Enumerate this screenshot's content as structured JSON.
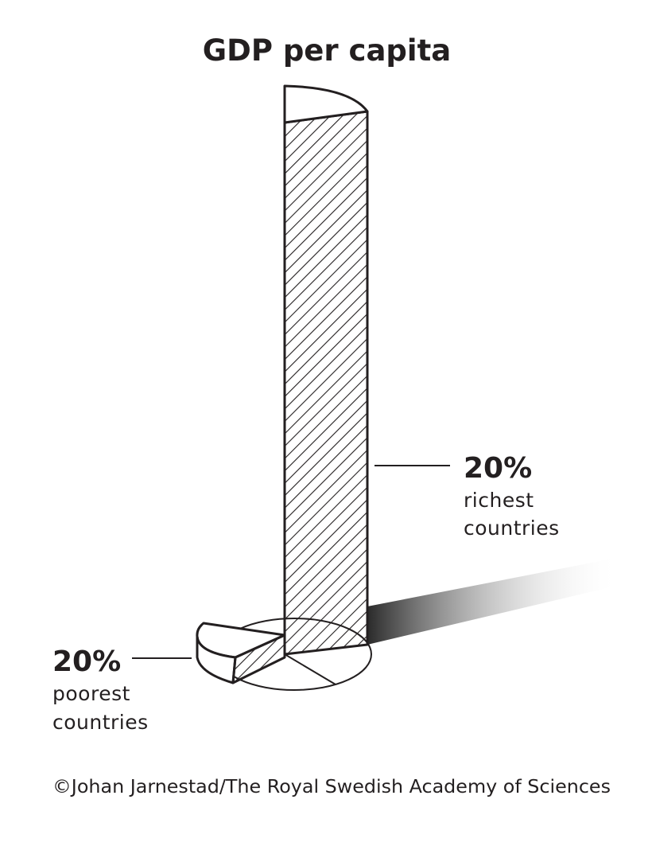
{
  "chart_data": {
    "type": "bar",
    "title": "GDP per capita",
    "categories": [
      "20% poorest countries",
      "20% richest countries"
    ],
    "values": [
      1,
      11
    ],
    "annotations": [
      {
        "percent": "20%",
        "line1": "richest",
        "line2": "countries"
      },
      {
        "percent": "20%",
        "line1": "poorest",
        "line2": "countries"
      }
    ]
  },
  "credit": "©Johan Jarnestad/The Royal Swedish Academy of Sciences",
  "colors": {
    "ink": "#231f20",
    "background": "#ffffff"
  }
}
